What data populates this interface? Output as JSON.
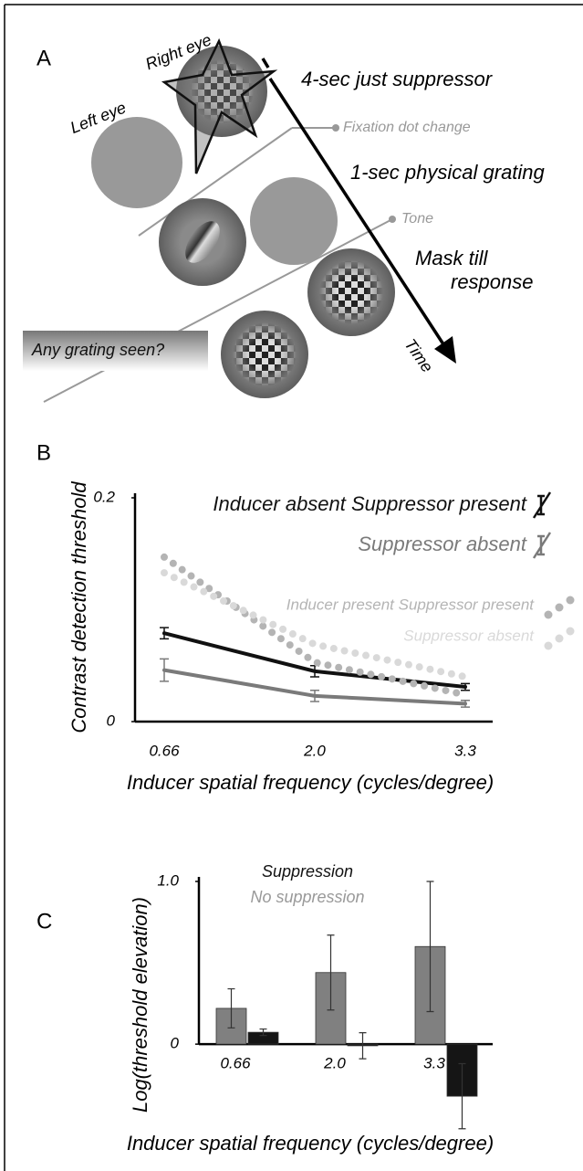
{
  "panel_a": {
    "label": "A",
    "left_eye": "Left eye",
    "right_eye": "Right eye",
    "stage_1": "4-sec just suppressor",
    "fixation_note": "Fixation dot change",
    "stage_2": "1-sec physical grating",
    "tone_note": "Tone",
    "stage_3": [
      "Mask till",
      "response"
    ],
    "time": "Time",
    "question": "Any grating seen?"
  },
  "chart_data": [
    {
      "type": "line",
      "panel_label": "B",
      "y_label": "Contrast detection threshold",
      "x_label": "Inducer spatial frequency (cycles/degree)",
      "categories": [
        "0.66",
        "2.0",
        "3.3"
      ],
      "ylim": [
        0,
        0.2
      ],
      "yticks": [
        0,
        0.2
      ],
      "series": [
        {
          "name": "Inducer absent Suppressor present",
          "color": "#111111",
          "style": "solid",
          "values": [
            0.079,
            0.045,
            0.031
          ],
          "errors": [
            0.005,
            0.005,
            0.003
          ]
        },
        {
          "name": "Suppressor absent",
          "color": "#7a7a7a",
          "style": "solid",
          "values": [
            0.046,
            0.023,
            0.016
          ],
          "errors": [
            0.01,
            0.005,
            0.003
          ]
        },
        {
          "name": "Inducer present Suppressor present",
          "color": "#b4b4b4",
          "style": "dotted",
          "values": [
            0.147,
            0.053,
            0.024
          ]
        },
        {
          "name": "Suppressor absent",
          "color": "#d9d9d9",
          "style": "dotted",
          "values": [
            0.133,
            0.069,
            0.04
          ]
        }
      ]
    },
    {
      "type": "bar",
      "panel_label": "C",
      "y_label": "Log(threshold elevation)",
      "x_label": "Inducer spatial frequency (cycles/degree)",
      "categories": [
        "0.66",
        "2.0",
        "3.3"
      ],
      "ylim": [
        -0.6,
        1.0
      ],
      "yticks": [
        0,
        {
          "value": 1,
          "label": "1.0"
        }
      ],
      "series": [
        {
          "name": "No suppression",
          "color": "#808080",
          "values": [
            0.22,
            0.44,
            0.6
          ],
          "errors": [
            0.12,
            0.23,
            0.4
          ]
        },
        {
          "name": "Suppression",
          "color": "#151515",
          "values": [
            0.073,
            -0.01,
            -0.32
          ],
          "errors": [
            0.02,
            0.08,
            0.2
          ]
        }
      ]
    }
  ]
}
